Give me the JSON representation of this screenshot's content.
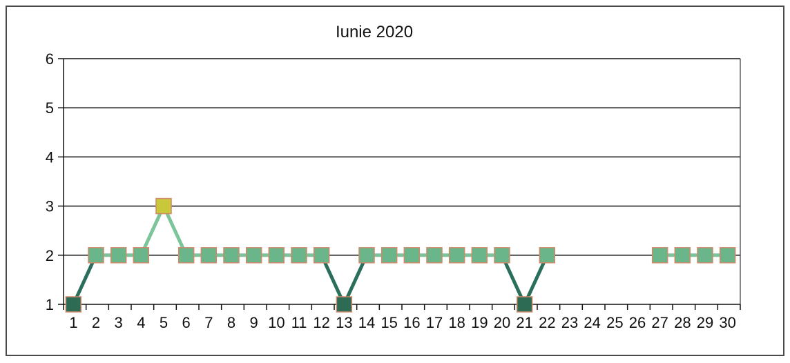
{
  "chart_data": {
    "type": "line",
    "title": "Iunie 2020",
    "xlabel": "",
    "ylabel": "",
    "categories": [
      "1",
      "2",
      "3",
      "4",
      "5",
      "6",
      "7",
      "8",
      "9",
      "10",
      "11",
      "12",
      "13",
      "14",
      "15",
      "16",
      "17",
      "18",
      "19",
      "20",
      "21",
      "22",
      "23",
      "24",
      "25",
      "26",
      "27",
      "28",
      "29",
      "30"
    ],
    "series": [
      {
        "values": [
          1,
          2,
          2,
          2,
          3,
          2,
          2,
          2,
          2,
          2,
          2,
          2,
          1,
          2,
          2,
          2,
          2,
          2,
          2,
          2,
          1,
          2,
          null,
          null,
          null,
          null,
          2,
          2,
          2,
          2
        ]
      }
    ],
    "ylim": [
      1,
      6
    ],
    "yticks": [
      1,
      2,
      3,
      4,
      5,
      6
    ],
    "grid": true,
    "legend": "none",
    "colors": {
      "level_1": "#2e6b55",
      "level_2": "#6ab58a",
      "level_3": "#c8c83a",
      "marker_border": "#d08a6a",
      "line_dark": "#2a6e5c",
      "line_light": "#7cc49a",
      "gridline": "#111111"
    }
  }
}
